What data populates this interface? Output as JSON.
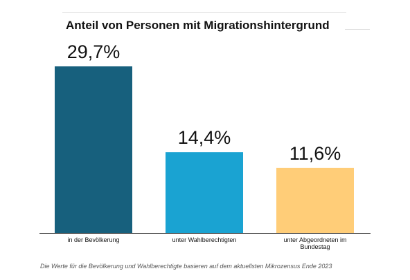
{
  "colors": {
    "series": [
      "#17607d",
      "#1aa3d2",
      "#ffcd78"
    ],
    "text": "#111111",
    "axis": "#333333"
  },
  "chart_data": {
    "type": "bar",
    "title": "Anteil von Personen mit Migrationshintergrund",
    "categories": [
      "in der Bevölkerung",
      "unter Wahlberechtigten",
      "unter Abgeordneten im Bundestag"
    ],
    "category_label_lines": [
      [
        "in der Bevölkerung"
      ],
      [
        "unter Wahlberechtigten"
      ],
      [
        "unter Abgeordneten im",
        "Bundestag"
      ]
    ],
    "values": [
      29.7,
      14.4,
      11.6
    ],
    "data_labels": [
      "29,7%",
      "14,4%",
      "11,6%"
    ],
    "ylim": [
      0,
      29.7
    ],
    "grid": false,
    "legend": "none"
  },
  "footnote": "Die Werte für die Bevölkerung und Wahlberechtigte basieren auf dem aktuellsten Mikrozensus Ende 2023"
}
